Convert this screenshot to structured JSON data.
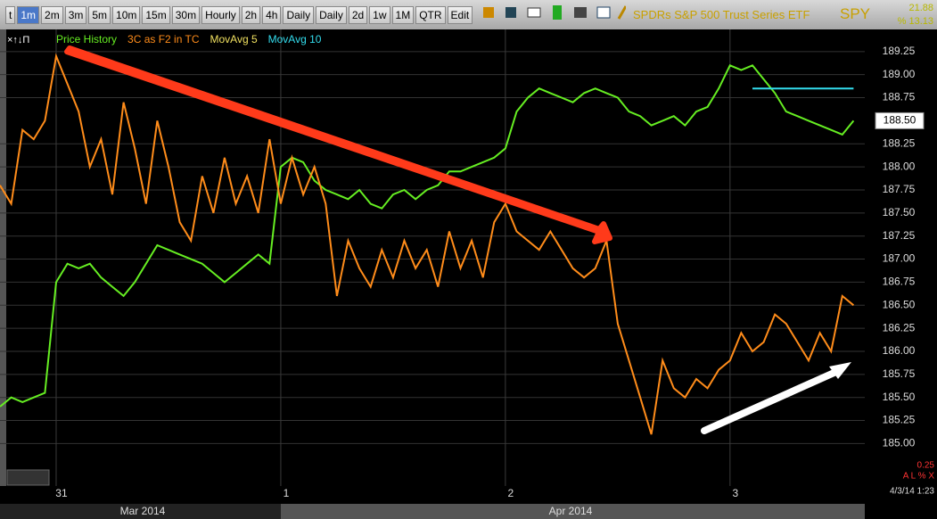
{
  "toolbar": {
    "buttons": [
      "t",
      "1m",
      "2m",
      "3m",
      "5m",
      "10m",
      "15m",
      "30m",
      "Hourly",
      "2h",
      "4h",
      "Daily",
      "Daily",
      "2d",
      "1w",
      "1M",
      "QTR",
      "Edit"
    ],
    "security_name": "SPDRs S&P 500 Trust Series ETF",
    "symbol": "SPY",
    "stat_top": "21.88",
    "stat_bottom": "% 13.13"
  },
  "legend": [
    {
      "text": "Price History",
      "color": "#66ee22"
    },
    {
      "text": "3C as F2 in TC",
      "color": "#ff8c1a"
    },
    {
      "text": "MovAvg 5",
      "color": "#f0e060"
    },
    {
      "text": "MovAvg 10",
      "color": "#33ddee"
    }
  ],
  "chart_data": {
    "type": "line",
    "x": [
      0,
      1,
      2,
      3,
      4,
      5,
      6,
      7,
      8,
      9,
      10,
      11,
      12,
      13,
      14,
      15,
      16,
      17,
      18,
      19,
      20,
      21,
      22,
      23,
      24,
      25,
      26,
      27,
      28,
      29,
      30,
      31,
      32,
      33,
      34,
      35,
      36,
      37,
      38,
      39,
      40,
      41,
      42,
      43,
      44,
      45,
      46,
      47,
      48,
      49,
      50,
      51,
      52,
      53,
      54,
      55,
      56,
      57,
      58,
      59,
      60,
      61,
      62,
      63,
      64,
      65,
      66,
      67,
      68,
      69,
      70,
      71,
      72,
      73,
      74,
      75,
      76
    ],
    "xlim": [
      0,
      77
    ],
    "xticks": [
      {
        "value": 5,
        "label": "31"
      },
      {
        "value": 25,
        "label": "1"
      },
      {
        "value": 45,
        "label": "2"
      },
      {
        "value": 65,
        "label": "3"
      }
    ],
    "series": [
      {
        "color": "#66ee22",
        "values": [
          185.4,
          185.5,
          185.45,
          185.5,
          185.55,
          186.75,
          186.95,
          186.9,
          186.95,
          186.8,
          186.7,
          186.6,
          186.75,
          186.95,
          187.15,
          187.1,
          187.05,
          187.0,
          186.95,
          186.85,
          186.75,
          186.85,
          186.95,
          187.05,
          186.95,
          188.0,
          188.1,
          188.05,
          187.85,
          187.75,
          187.7,
          187.65,
          187.75,
          187.6,
          187.55,
          187.7,
          187.75,
          187.65,
          187.75,
          187.8,
          187.95,
          187.95,
          188.0,
          188.05,
          188.1,
          188.2,
          188.6,
          188.75,
          188.85,
          188.8,
          188.75,
          188.7,
          188.8,
          188.85,
          188.8,
          188.75,
          188.6,
          188.55,
          188.45,
          188.5,
          188.55,
          188.45,
          188.6,
          188.65,
          188.85,
          189.1,
          189.05,
          189.1,
          188.95,
          188.8,
          188.6,
          188.55,
          188.5,
          188.45,
          188.4,
          188.35,
          188.5
        ]
      },
      {
        "color": "#ff8c1a",
        "values": [
          187.8,
          187.6,
          188.4,
          188.3,
          188.5,
          189.2,
          188.9,
          188.6,
          188.0,
          188.3,
          187.7,
          188.7,
          188.2,
          187.6,
          188.5,
          188.0,
          187.4,
          187.2,
          187.9,
          187.5,
          188.1,
          187.6,
          187.9,
          187.5,
          188.3,
          187.6,
          188.1,
          187.7,
          188.0,
          187.6,
          186.6,
          187.2,
          186.9,
          186.7,
          187.1,
          186.8,
          187.2,
          186.9,
          187.1,
          186.7,
          187.3,
          186.9,
          187.2,
          186.8,
          187.4,
          187.6,
          187.3,
          187.2,
          187.1,
          187.3,
          187.1,
          186.9,
          186.8,
          186.9,
          187.2,
          186.3,
          185.9,
          185.5,
          185.1,
          185.9,
          185.6,
          185.5,
          185.7,
          185.6,
          185.8,
          185.9,
          186.2,
          186.0,
          186.1,
          186.4,
          186.3,
          186.1,
          185.9,
          186.2,
          186.0,
          186.6,
          186.5
        ]
      },
      {
        "color": "#33ddee",
        "values": [
          null,
          null,
          null,
          null,
          null,
          null,
          null,
          null,
          null,
          null,
          null,
          null,
          null,
          null,
          null,
          null,
          null,
          null,
          null,
          null,
          null,
          null,
          null,
          null,
          null,
          null,
          null,
          null,
          null,
          null,
          null,
          null,
          null,
          null,
          null,
          null,
          null,
          null,
          null,
          null,
          null,
          null,
          null,
          null,
          null,
          null,
          null,
          null,
          null,
          null,
          null,
          null,
          null,
          null,
          null,
          null,
          null,
          null,
          null,
          null,
          null,
          null,
          null,
          null,
          null,
          null,
          null,
          188.85,
          188.85,
          188.85,
          188.85,
          188.85,
          188.85,
          188.85,
          188.85,
          188.85,
          188.85
        ]
      }
    ],
    "ylim": [
      184.54,
      189.49
    ],
    "yticks": [
      {
        "value": 185,
        "label": "185.00"
      },
      {
        "value": 185.25,
        "label": "185.25"
      },
      {
        "value": 185.5,
        "label": "185.50"
      },
      {
        "value": 185.75,
        "label": "185.75"
      },
      {
        "value": 186,
        "label": "186.00"
      },
      {
        "value": 186.25,
        "label": "186.25"
      },
      {
        "value": 186.5,
        "label": "186.50"
      },
      {
        "value": 186.75,
        "label": "186.75"
      },
      {
        "value": 187,
        "label": "187.00"
      },
      {
        "value": 187.25,
        "label": "187.25"
      },
      {
        "value": 187.5,
        "label": "187.50"
      },
      {
        "value": 187.75,
        "label": "187.75"
      },
      {
        "value": 188,
        "label": "188.00"
      },
      {
        "value": 188.25,
        "label": "188.25"
      },
      {
        "value": 188.75,
        "label": "188.75"
      },
      {
        "value": 189,
        "label": "189.00"
      },
      {
        "value": 189.25,
        "label": "189.25"
      }
    ],
    "last_price": {
      "value": 188.5,
      "label": "188.50"
    },
    "grid": true,
    "months": [
      "Mar 2014",
      "Apr 2014"
    ],
    "timestamp": "4/3/14 1:23",
    "indicator_value": "0.25",
    "indicator_flags": "A L % X"
  }
}
